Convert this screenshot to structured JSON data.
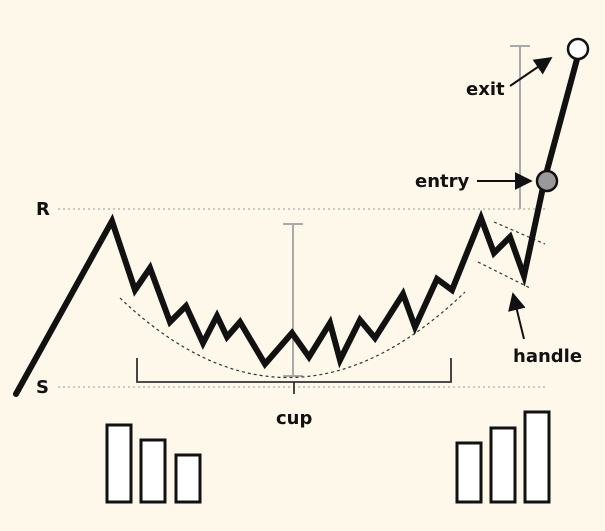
{
  "labels": {
    "resistance": "R",
    "support": "S",
    "cup": "cup",
    "handle": "handle",
    "entry": "entry",
    "exit": "exit"
  },
  "colors": {
    "background": "#fdf8e9",
    "line": "#111111",
    "guide": "#999999",
    "range_bar": "#aaaaaa",
    "entry_marker": "#999999",
    "exit_marker": "#ffffff"
  },
  "volume": {
    "left_bars_relative": [
      1.0,
      0.81,
      0.61
    ],
    "right_bars_relative": [
      0.75,
      0.92,
      1.0
    ]
  },
  "icons": {
    "entry_marker": "filled-circle",
    "exit_marker": "hollow-circle"
  }
}
